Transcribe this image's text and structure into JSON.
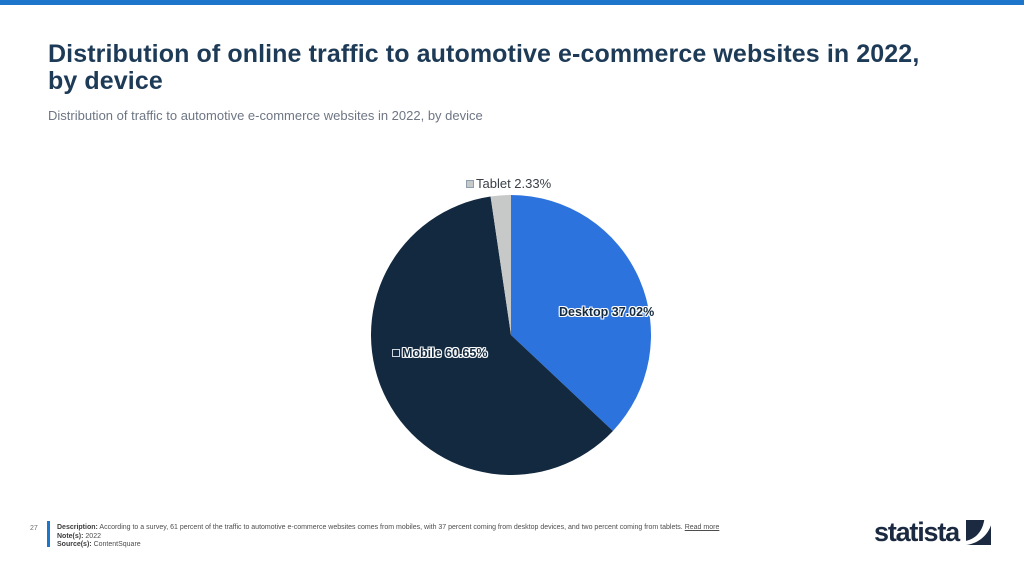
{
  "header": {
    "title_line1": "Distribution of online traffic to automotive e-commerce websites in 2022,",
    "title_line2": "by device",
    "subtitle": "Distribution of traffic to automotive e-commerce websites in 2022, by device"
  },
  "chart_data": {
    "type": "pie",
    "title": "Distribution of traffic to automotive e-commerce websites in 2022, by device",
    "unit": "%",
    "direction": "clockwise",
    "start_angle_deg": 0,
    "legend_position": "on-slice-labels",
    "slices": [
      {
        "name": "Desktop",
        "value": 37.02,
        "label": "Desktop 37.02%",
        "color": "#2d73dd"
      },
      {
        "name": "Mobile",
        "value": 60.65,
        "label": "Mobile 60.65%",
        "color": "#13293f"
      },
      {
        "name": "Tablet",
        "value": 2.33,
        "label": "Tablet 2.33%",
        "color": "#c6c9c8"
      }
    ]
  },
  "footer": {
    "page_number": "27",
    "description_label": "Description:",
    "description_text": "According to a survey, 61 percent of the traffic to automotive e-commerce websites comes from mobiles, with 37 percent coming from desktop devices, and two percent coming from tablets.",
    "read_more_label": "Read more",
    "note_label": "Note(s):",
    "note_text": "2022",
    "source_label": "Source(s):",
    "source_text": "ContentSquare",
    "logo_text": "statista"
  },
  "colors": {
    "accent_blue": "#1d76c9",
    "title_navy": "#1d3a56",
    "logo_navy": "#1b2a40"
  }
}
